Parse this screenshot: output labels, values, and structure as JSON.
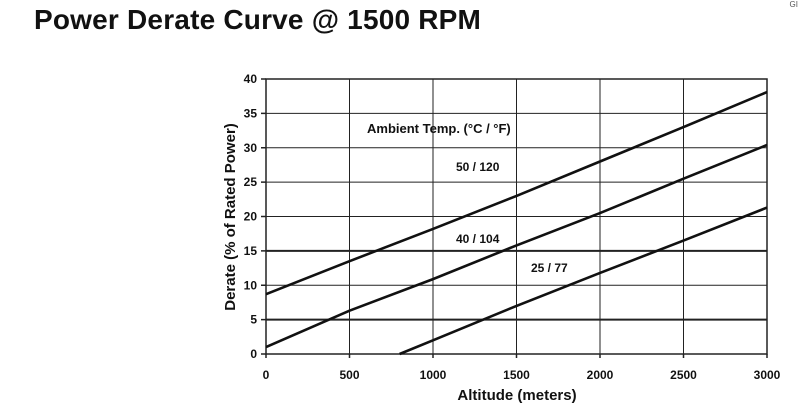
{
  "page": {
    "title": "Power Derate Curve @ 1500 RPM",
    "corner_mark": "GI"
  },
  "chart_data": {
    "type": "line",
    "title": "Power Derate Curve @ 1500 RPM",
    "xlabel": "Altitude (meters)",
    "ylabel": "Derate (% of Rated Power)",
    "xlim": [
      0,
      3000
    ],
    "ylim": [
      0,
      40
    ],
    "xticks": [
      0,
      500,
      1000,
      1500,
      2000,
      2500,
      3000
    ],
    "yticks": [
      0,
      5,
      10,
      15,
      20,
      25,
      30,
      35,
      40
    ],
    "grid": true,
    "emphasized_gridlines_y": [
      5,
      15
    ],
    "legend_title": "Ambient Temp. (°C / °F)",
    "series": [
      {
        "name": "50 / 120",
        "label": "50 / 120",
        "x": [
          0,
          500,
          1000,
          1500,
          2000,
          2500,
          3000
        ],
        "y": [
          8.7,
          13.5,
          18.2,
          23.0,
          28.0,
          33.0,
          38.1
        ]
      },
      {
        "name": "40 / 104",
        "label": "40 / 104",
        "x": [
          0,
          500,
          1000,
          1500,
          2000,
          2500,
          3000
        ],
        "y": [
          1.0,
          6.3,
          10.9,
          15.8,
          20.5,
          25.5,
          30.4
        ]
      },
      {
        "name": "25 / 77",
        "label": "25 / 77",
        "x": [
          800,
          1000,
          1500,
          2000,
          2500,
          3000
        ],
        "y": [
          0.0,
          2.0,
          7.0,
          11.8,
          16.5,
          21.3
        ]
      }
    ]
  }
}
